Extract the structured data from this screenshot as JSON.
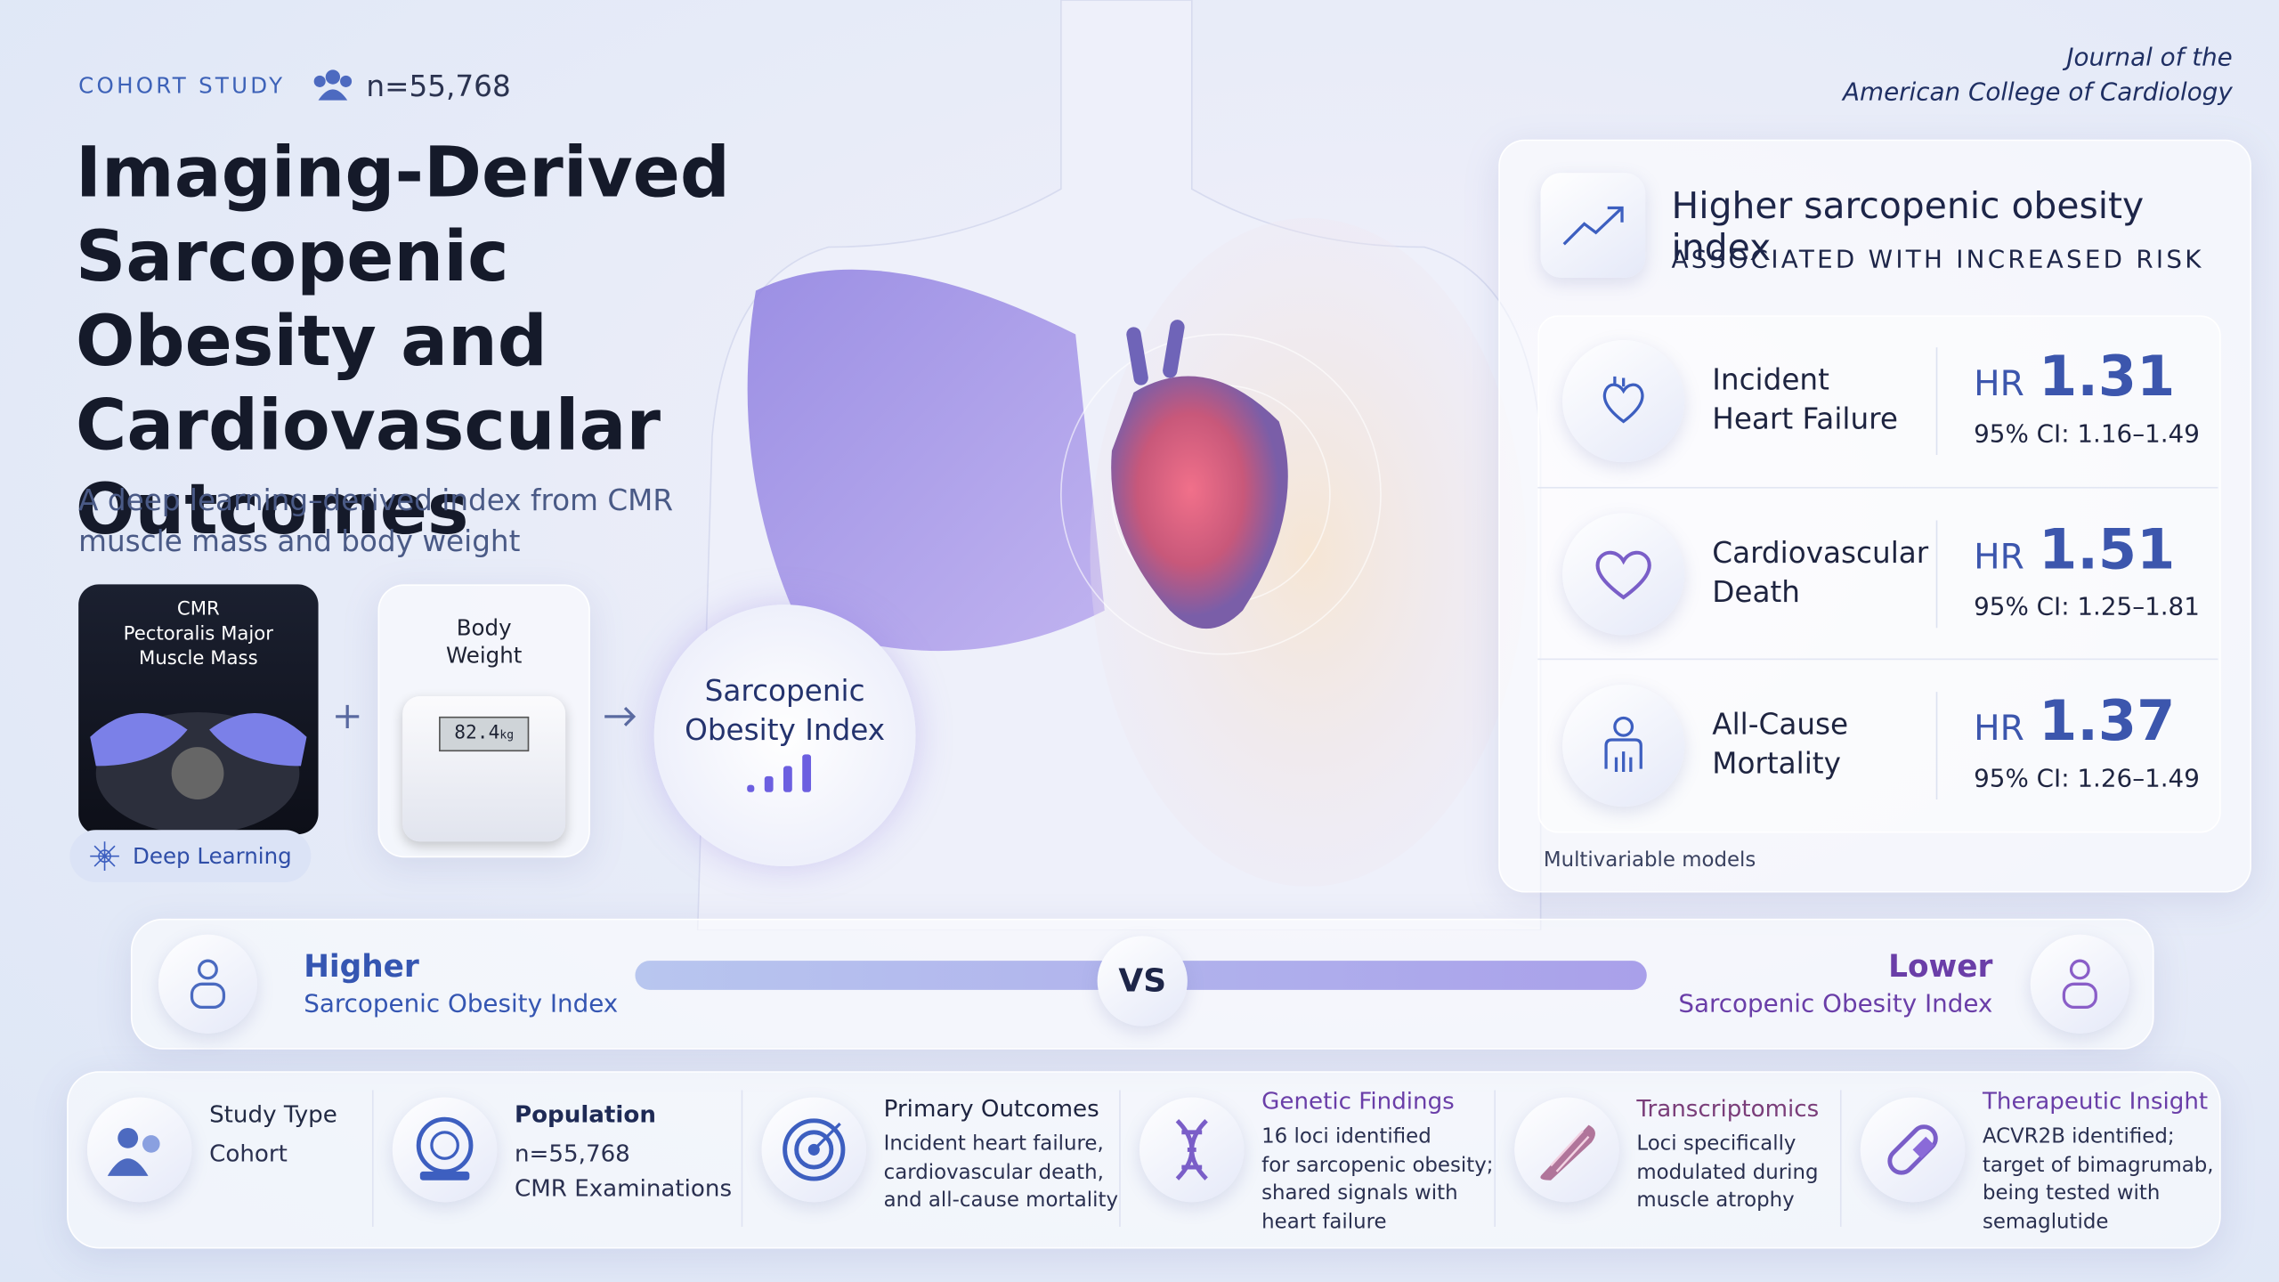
{
  "header": {
    "tag": "COHORT STUDY",
    "n": "n=55,768",
    "title": "Imaging-Derived Sarcopenic Obesity and Cardiovascular Outcomes",
    "subtitle": [
      "A deep learning–derived index from CMR",
      "muscle mass and body weight"
    ]
  },
  "journal": [
    "Journal of the",
    "American College of Cardiology"
  ],
  "pipeline": {
    "cmr_label": [
      "CMR",
      "Pectoralis Major",
      "Muscle Mass"
    ],
    "deep_learning": "Deep Learning",
    "body_weight": [
      "Body",
      "Weight"
    ],
    "scale_reading": "82.4",
    "scale_unit": "kg",
    "index": [
      "Sarcopenic",
      "Obesity Index"
    ]
  },
  "results": {
    "heading": "Higher sarcopenic obesity index",
    "subheading": "ASSOCIATED WITH INCREASED RISK",
    "rows": [
      {
        "outcome": [
          "Incident",
          "Heart Failure"
        ],
        "hr_label": "HR",
        "hr": "1.31",
        "ci": "95% CI: 1.16–1.49"
      },
      {
        "outcome": [
          "Cardiovascular",
          "Death"
        ],
        "hr_label": "HR",
        "hr": "1.51",
        "ci": "95% CI: 1.25–1.81"
      },
      {
        "outcome": [
          "All-Cause",
          "Mortality"
        ],
        "hr_label": "HR",
        "hr": "1.37",
        "ci": "95% CI: 1.26–1.49"
      }
    ],
    "footnote": "Multivariable models"
  },
  "comparison": {
    "left_title": "Higher",
    "left_sub": "Sarcopenic Obesity Index",
    "vs": "VS",
    "right_title": "Lower",
    "right_sub": "Sarcopenic Obesity Index"
  },
  "summary": [
    {
      "title": "Study Type",
      "lines": [
        "Cohort"
      ]
    },
    {
      "title": "Population",
      "lines": [
        "n=55,768",
        "CMR Examinations"
      ]
    },
    {
      "title": "Primary Outcomes",
      "lines": [
        "Incident heart failure,",
        "cardiovascular death,",
        "and all-cause mortality"
      ]
    },
    {
      "title": "Genetic Findings",
      "lines": [
        "16 loci identified",
        "for sarcopenic obesity;",
        "shared signals with",
        "heart failure"
      ]
    },
    {
      "title": "Transcriptomics",
      "lines": [
        "Loci specifically",
        "modulated during",
        "muscle atrophy"
      ]
    },
    {
      "title": "Therapeutic Insight",
      "lines": [
        "ACVR2B identified;",
        "target of bimagrumab,",
        "being tested with",
        "semaglutide"
      ]
    }
  ]
}
